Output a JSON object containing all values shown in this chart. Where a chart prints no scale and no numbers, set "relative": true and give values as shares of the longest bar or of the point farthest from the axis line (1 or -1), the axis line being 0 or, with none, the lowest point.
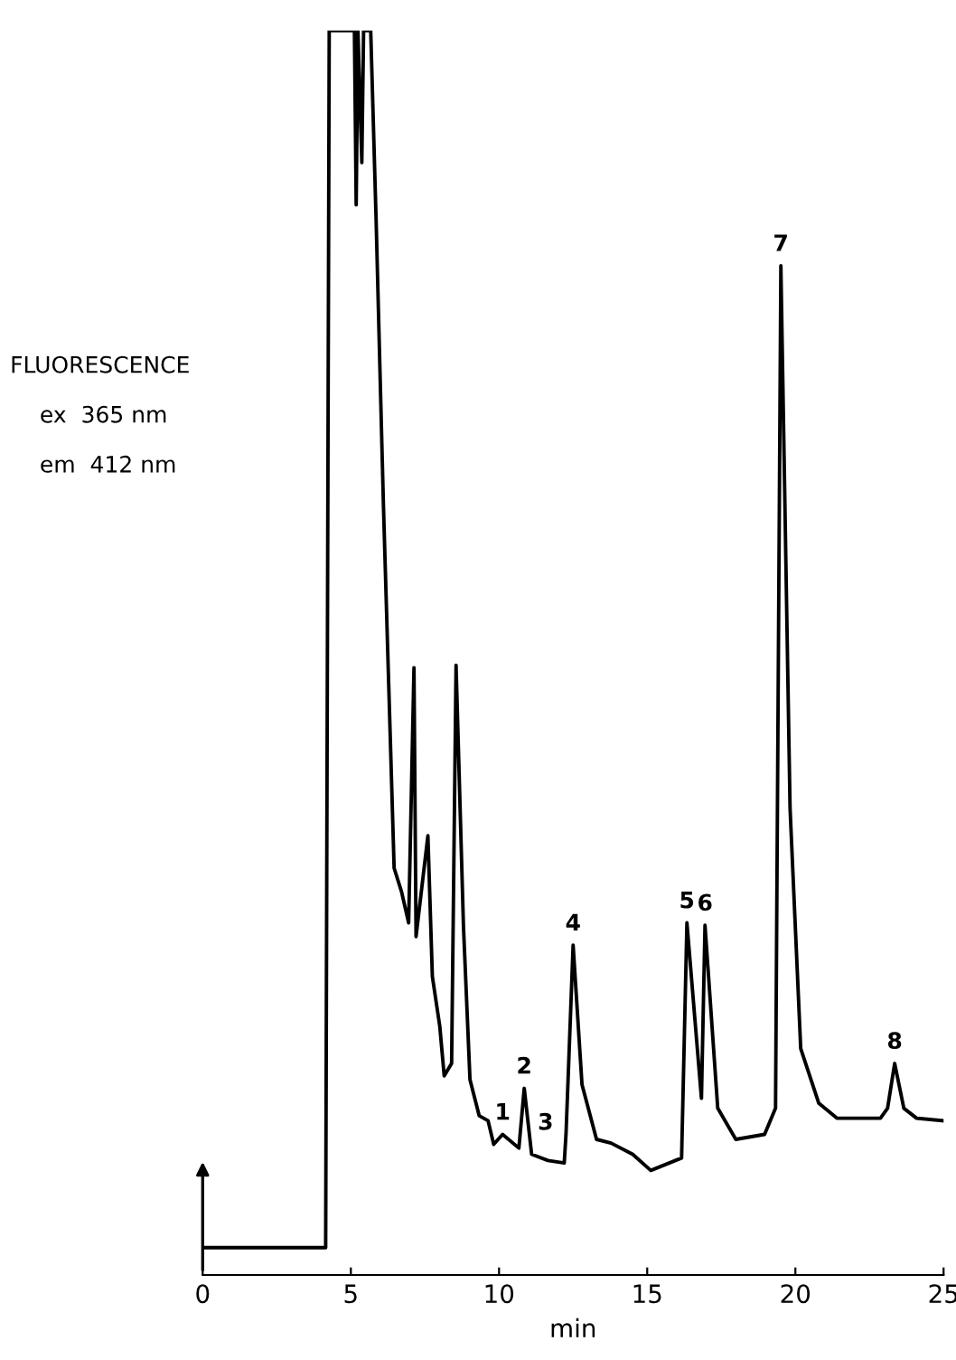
{
  "chart_data": {
    "type": "line",
    "relative": true,
    "xlabel": "min",
    "ylabel": "FLUORESCENCE",
    "xlim": [
      0,
      25
    ],
    "xticks": [
      0,
      5,
      10,
      15,
      20,
      25
    ],
    "grid": false,
    "legend": false,
    "marker": "none",
    "line_style": "solid",
    "series": [
      {
        "color": "#000000",
        "x": [
          0,
          4.15,
          4.27,
          5.12,
          5.18,
          5.24,
          5.37,
          5.43,
          5.67,
          5.85,
          6.1,
          6.46,
          6.71,
          6.95,
          7.13,
          7.2,
          7.6,
          7.75,
          8.0,
          8.15,
          8.4,
          8.55,
          8.8,
          9.02,
          9.33,
          9.63,
          9.82,
          10.12,
          10.67,
          10.85,
          11.1,
          11.65,
          12.2,
          12.26,
          12.5,
          12.8,
          13.29,
          13.78,
          14.51,
          15.12,
          16.16,
          16.34,
          16.83,
          16.95,
          17.38,
          17.99,
          18.96,
          19.33,
          19.51,
          19.82,
          20.18,
          20.79,
          21.4,
          22.87,
          23.11,
          23.35,
          23.66,
          24.09,
          25.0
        ],
        "values": [
          0.022,
          0.022,
          1.0,
          1.0,
          0.86,
          1.0,
          0.894,
          1.0,
          1.0,
          0.85,
          0.618,
          0.327,
          0.308,
          0.283,
          0.488,
          0.272,
          0.353,
          0.24,
          0.2,
          0.16,
          0.17,
          0.49,
          0.28,
          0.157,
          0.128,
          0.124,
          0.105,
          0.113,
          0.102,
          0.15,
          0.097,
          0.092,
          0.09,
          0.113,
          0.265,
          0.153,
          0.109,
          0.106,
          0.097,
          0.084,
          0.094,
          0.283,
          0.142,
          0.281,
          0.134,
          0.109,
          0.113,
          0.134,
          0.811,
          0.375,
          0.182,
          0.138,
          0.126,
          0.126,
          0.134,
          0.17,
          0.134,
          0.126,
          0.124
        ]
      }
    ],
    "annotations": [
      "ex  365 nm",
      "em  412 nm",
      {
        "text": "1",
        "x": 10.12,
        "y": 0.113
      },
      {
        "text": "2",
        "x": 10.85,
        "y": 0.15
      },
      {
        "text": "3",
        "x": 12.26,
        "y": 0.113
      },
      {
        "text": "4",
        "x": 12.5,
        "y": 0.265
      },
      {
        "text": "5",
        "x": 16.34,
        "y": 0.283
      },
      {
        "text": "6",
        "x": 16.95,
        "y": 0.281
      },
      {
        "text": "7",
        "x": 19.51,
        "y": 0.811
      },
      {
        "text": "8",
        "x": 23.35,
        "y": 0.17
      }
    ]
  }
}
